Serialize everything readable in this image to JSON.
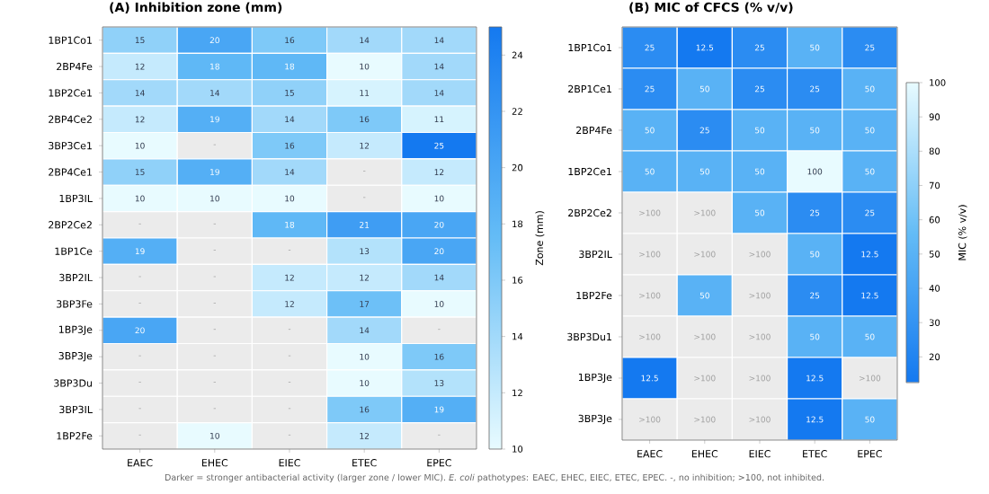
{
  "chart_data": [
    {
      "type": "heatmap",
      "title": "(A) Inhibition zone (mm)",
      "clabel": "Zone (mm)",
      "categories": [
        "EAEC",
        "EHEC",
        "EIEC",
        "ETEC",
        "EPEC"
      ],
      "y_categories": [
        "1BP1Co1",
        "2BP4Fe",
        "1BP2Ce1",
        "2BP4Ce2",
        "3BP3Ce1",
        "2BP4Ce1",
        "1BP3IL",
        "2BP2Ce2",
        "1BP1Ce",
        "3BP2IL",
        "3BP3Fe",
        "1BP3Je",
        "3BP3Je",
        "3BP3Du",
        "3BP3IL",
        "1BP2Fe"
      ],
      "cells": [
        [
          15,
          20,
          16,
          14,
          14
        ],
        [
          12,
          18,
          18,
          10,
          14
        ],
        [
          14,
          14,
          15,
          11,
          14
        ],
        [
          12,
          19,
          14,
          16,
          11
        ],
        [
          10,
          null,
          16,
          12,
          25
        ],
        [
          15,
          19,
          14,
          null,
          12
        ],
        [
          10,
          10,
          10,
          null,
          10
        ],
        [
          null,
          null,
          18,
          21,
          20
        ],
        [
          19,
          null,
          null,
          13,
          20
        ],
        [
          null,
          null,
          12,
          12,
          14
        ],
        [
          null,
          null,
          12,
          17,
          10
        ],
        [
          20,
          null,
          null,
          14,
          null
        ],
        [
          null,
          null,
          null,
          10,
          16
        ],
        [
          null,
          null,
          null,
          10,
          13
        ],
        [
          null,
          null,
          null,
          16,
          19
        ],
        [
          null,
          10,
          null,
          12,
          null
        ]
      ],
      "cell_labels": [
        [
          "15",
          "20",
          "16",
          "14",
          "14"
        ],
        [
          "12",
          "18",
          "18",
          "10",
          "14"
        ],
        [
          "14",
          "14",
          "15",
          "11",
          "14"
        ],
        [
          "12",
          "19",
          "14",
          "16",
          "11"
        ],
        [
          "10",
          "-",
          "16",
          "12",
          "25"
        ],
        [
          "15",
          "19",
          "14",
          "-",
          "12"
        ],
        [
          "10",
          "10",
          "10",
          "-",
          "10"
        ],
        [
          "-",
          "-",
          "18",
          "21",
          "20"
        ],
        [
          "19",
          "-",
          "-",
          "13",
          "20"
        ],
        [
          "-",
          "-",
          "12",
          "12",
          "14"
        ],
        [
          "-",
          "-",
          "12",
          "17",
          "10"
        ],
        [
          "20",
          "-",
          "-",
          "14",
          "-"
        ],
        [
          "-",
          "-",
          "-",
          "10",
          "16"
        ],
        [
          "-",
          "-",
          "-",
          "10",
          "13"
        ],
        [
          "-",
          "-",
          "-",
          "16",
          "19"
        ],
        [
          "-",
          "10",
          "-",
          "12",
          "-"
        ]
      ],
      "clim": [
        10,
        25
      ],
      "cticks": [
        10,
        12,
        14,
        16,
        18,
        20,
        22,
        24
      ],
      "annotations": [
        "Darker = stronger antibacterial activity (larger zone / lower MIC). *E. coli* pathotypes: EAEC, EHEC, EIEC, ETEC, EPEC.  -, no inhibition; >100, not inhibited."
      ]
    },
    {
      "type": "heatmap",
      "title": "(B) MIC of CFCS (% v/v)",
      "clabel": "MIC (% v/v)",
      "categories": [
        "EAEC",
        "EHEC",
        "EIEC",
        "ETEC",
        "EPEC"
      ],
      "y_categories": [
        "1BP1Co1",
        "2BP1Ce1",
        "2BP4Fe",
        "1BP2Ce1",
        "2BP2Ce2",
        "3BP2IL",
        "1BP2Fe",
        "3BP3Du1",
        "1BP3Je",
        "3BP3Je"
      ],
      "cells": [
        [
          25,
          12.5,
          25,
          50,
          25
        ],
        [
          25,
          50,
          25,
          25,
          50
        ],
        [
          50,
          25,
          50,
          50,
          50
        ],
        [
          50,
          50,
          50,
          100,
          50
        ],
        [
          null,
          null,
          50,
          25,
          25
        ],
        [
          null,
          null,
          null,
          50,
          12.5
        ],
        [
          null,
          50,
          null,
          25,
          12.5
        ],
        [
          null,
          null,
          null,
          50,
          50
        ],
        [
          12.5,
          null,
          null,
          12.5,
          null
        ],
        [
          null,
          null,
          null,
          12.5,
          50
        ]
      ],
      "cell_labels": [
        [
          "25",
          "12.5",
          "25",
          "50",
          "25"
        ],
        [
          "25",
          "50",
          "25",
          "25",
          "50"
        ],
        [
          "50",
          "25",
          "50",
          "50",
          "50"
        ],
        [
          "50",
          "50",
          "50",
          "100",
          "50"
        ],
        [
          ">100",
          ">100",
          "50",
          "25",
          "25"
        ],
        [
          ">100",
          ">100",
          ">100",
          "50",
          "12.5"
        ],
        [
          ">100",
          "50",
          ">100",
          "25",
          "12.5"
        ],
        [
          ">100",
          ">100",
          ">100",
          "50",
          "50"
        ],
        [
          "12.5",
          ">100",
          ">100",
          "12.5",
          ">100"
        ],
        [
          ">100",
          ">100",
          ">100",
          "12.5",
          "50"
        ]
      ],
      "clim": [
        12.5,
        100
      ],
      "cticks": [
        20,
        30,
        40,
        50,
        60,
        70,
        80,
        90,
        100
      ]
    }
  ]
}
